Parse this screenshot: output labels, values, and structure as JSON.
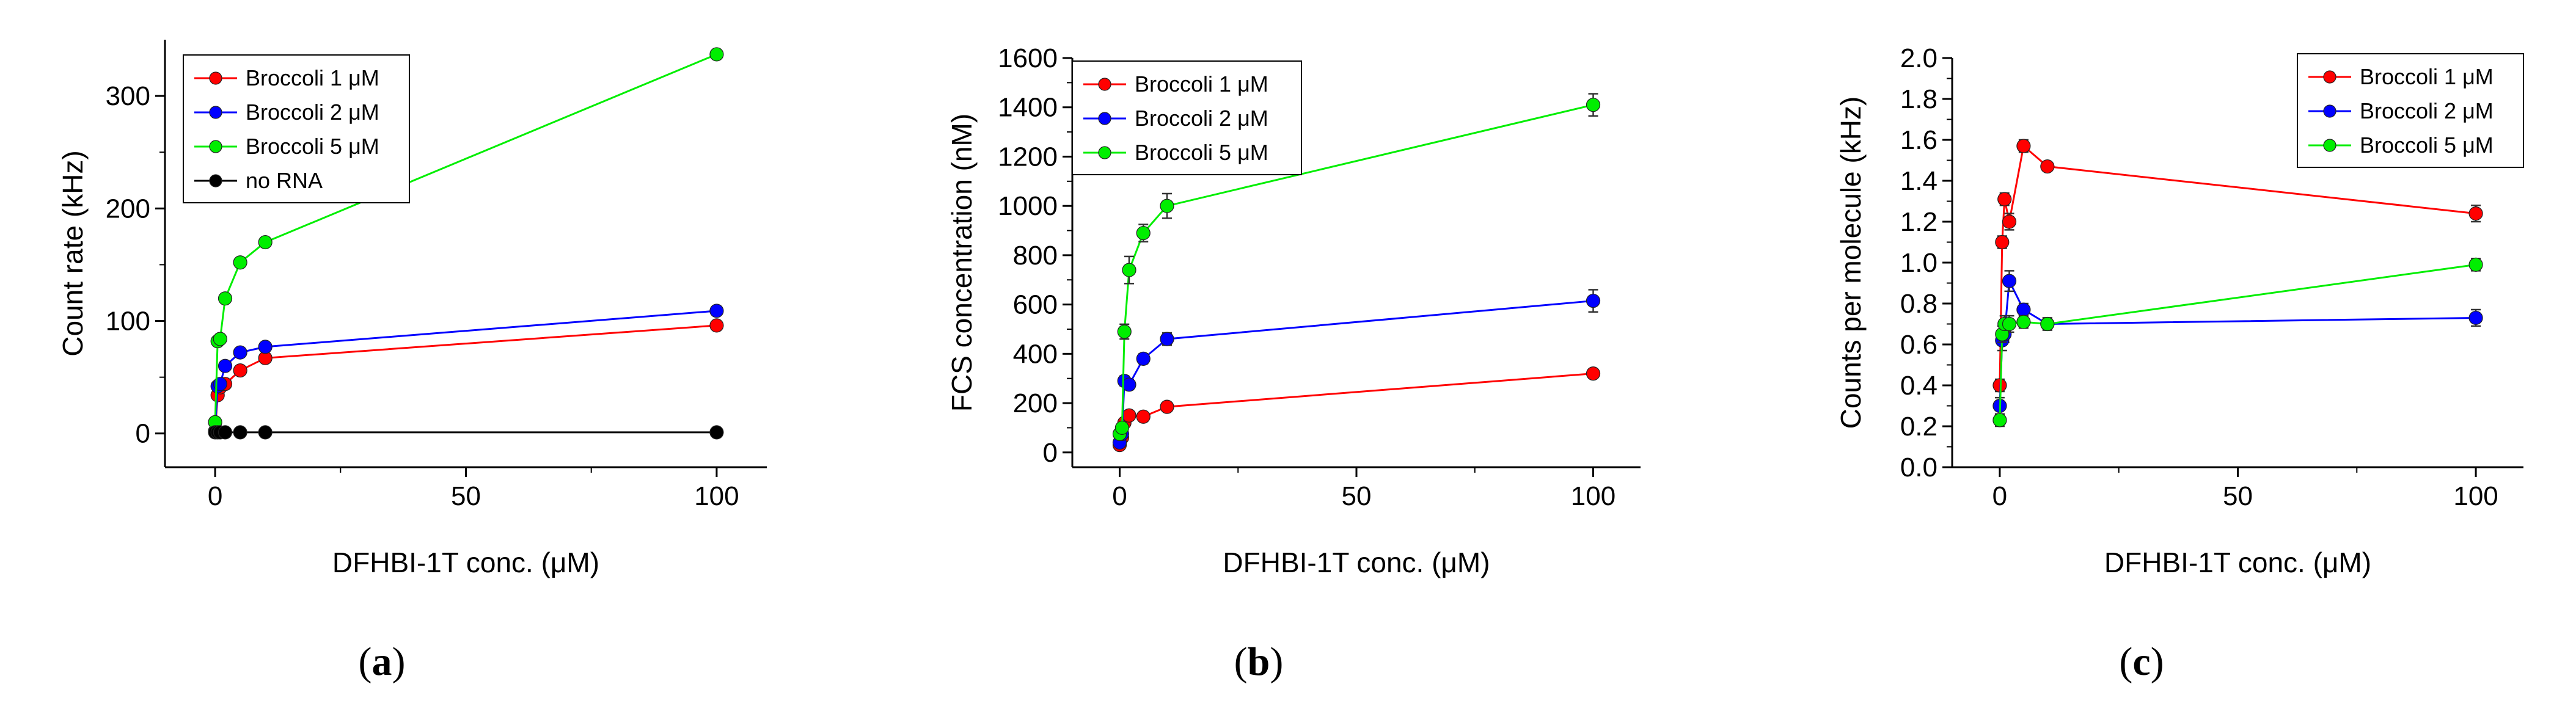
{
  "figure": {
    "panels": [
      "a",
      "b",
      "c"
    ]
  },
  "chart_data": [
    {
      "panel": "a",
      "type": "line",
      "title": "",
      "xlabel": "DFHBI-1T conc. (μM)",
      "ylabel": "Count rate (kHz)",
      "xlim": [
        -10,
        110
      ],
      "ylim": [
        -30,
        350
      ],
      "xticks": [
        0,
        50,
        100
      ],
      "yticks": [
        0,
        100,
        200,
        300
      ],
      "legend_position": "top-left",
      "x": [
        0,
        0.5,
        1,
        2,
        5,
        10,
        100
      ],
      "series": [
        {
          "name": "Broccoli 1 μM",
          "color": "#ff0000",
          "values": [
            2,
            34,
            41,
            44,
            56,
            67,
            96
          ]
        },
        {
          "name": "Broccoli 2 μM",
          "color": "#0000ff",
          "values": [
            2,
            42,
            44,
            60,
            72,
            77,
            109
          ]
        },
        {
          "name": "Broccoli 5 μM",
          "color": "#00ee00",
          "values": [
            10,
            82,
            84,
            120,
            152,
            170,
            337
          ]
        },
        {
          "name": "no RNA",
          "color": "#000000",
          "values": [
            1,
            1,
            1,
            1,
            1,
            1,
            1
          ]
        }
      ]
    },
    {
      "panel": "b",
      "type": "line",
      "title": "",
      "xlabel": "DFHBI-1T conc. (μM)",
      "ylabel": "FCS concentration (nM)",
      "xlim": [
        -10,
        110
      ],
      "ylim": [
        -60,
        1600
      ],
      "xticks": [
        0,
        50,
        100
      ],
      "yticks": [
        0,
        200,
        400,
        600,
        800,
        1000,
        1200,
        1400,
        1600
      ],
      "legend_position": "top-left",
      "x": [
        0,
        0.5,
        1,
        2,
        5,
        10,
        100
      ],
      "series": [
        {
          "name": "Broccoli 1 μM",
          "color": "#ff0000",
          "values": [
            30,
            60,
            120,
            150,
            145,
            185,
            320
          ],
          "errors": [
            8,
            10,
            12,
            15,
            15,
            12,
            15
          ]
        },
        {
          "name": "Broccoli 2 μM",
          "color": "#0000ff",
          "values": [
            40,
            75,
            290,
            275,
            380,
            460,
            615
          ],
          "errors": [
            10,
            10,
            20,
            20,
            20,
            25,
            45
          ]
        },
        {
          "name": "Broccoli 5 μM",
          "color": "#00ee00",
          "values": [
            75,
            100,
            490,
            740,
            890,
            1000,
            1410
          ],
          "errors": [
            12,
            15,
            30,
            55,
            35,
            50,
            45
          ]
        }
      ]
    },
    {
      "panel": "c",
      "type": "line",
      "title": "",
      "xlabel": "DFHBI-1T conc. (μM)",
      "ylabel": "Counts per molecule (kHz)",
      "xlim": [
        -10,
        110
      ],
      "ylim": [
        0,
        2.0
      ],
      "xticks": [
        0,
        50,
        100
      ],
      "yticks": [
        0.0,
        0.2,
        0.4,
        0.6,
        0.8,
        1.0,
        1.2,
        1.4,
        1.6,
        1.8,
        2.0
      ],
      "legend_position": "top-right",
      "x": [
        0,
        0.5,
        1,
        2,
        5,
        10,
        100
      ],
      "series": [
        {
          "name": "Broccoli 1 μM",
          "color": "#ff0000",
          "values": [
            0.4,
            1.1,
            1.31,
            1.2,
            1.57,
            1.47,
            1.24
          ],
          "errors": [
            0.03,
            0.03,
            0.03,
            0.04,
            0.03,
            0.02,
            0.04
          ]
        },
        {
          "name": "Broccoli 2 μM",
          "color": "#0000ff",
          "values": [
            0.3,
            0.62,
            0.65,
            0.91,
            0.77,
            0.7,
            0.73
          ],
          "errors": [
            0.04,
            0.05,
            0.04,
            0.05,
            0.03,
            0.03,
            0.04
          ]
        },
        {
          "name": "Broccoli 5 μM",
          "color": "#00ee00",
          "values": [
            0.23,
            0.65,
            0.7,
            0.7,
            0.71,
            0.7,
            0.99
          ],
          "errors": [
            0.03,
            0.04,
            0.04,
            0.04,
            0.03,
            0.03,
            0.03
          ]
        }
      ]
    }
  ]
}
